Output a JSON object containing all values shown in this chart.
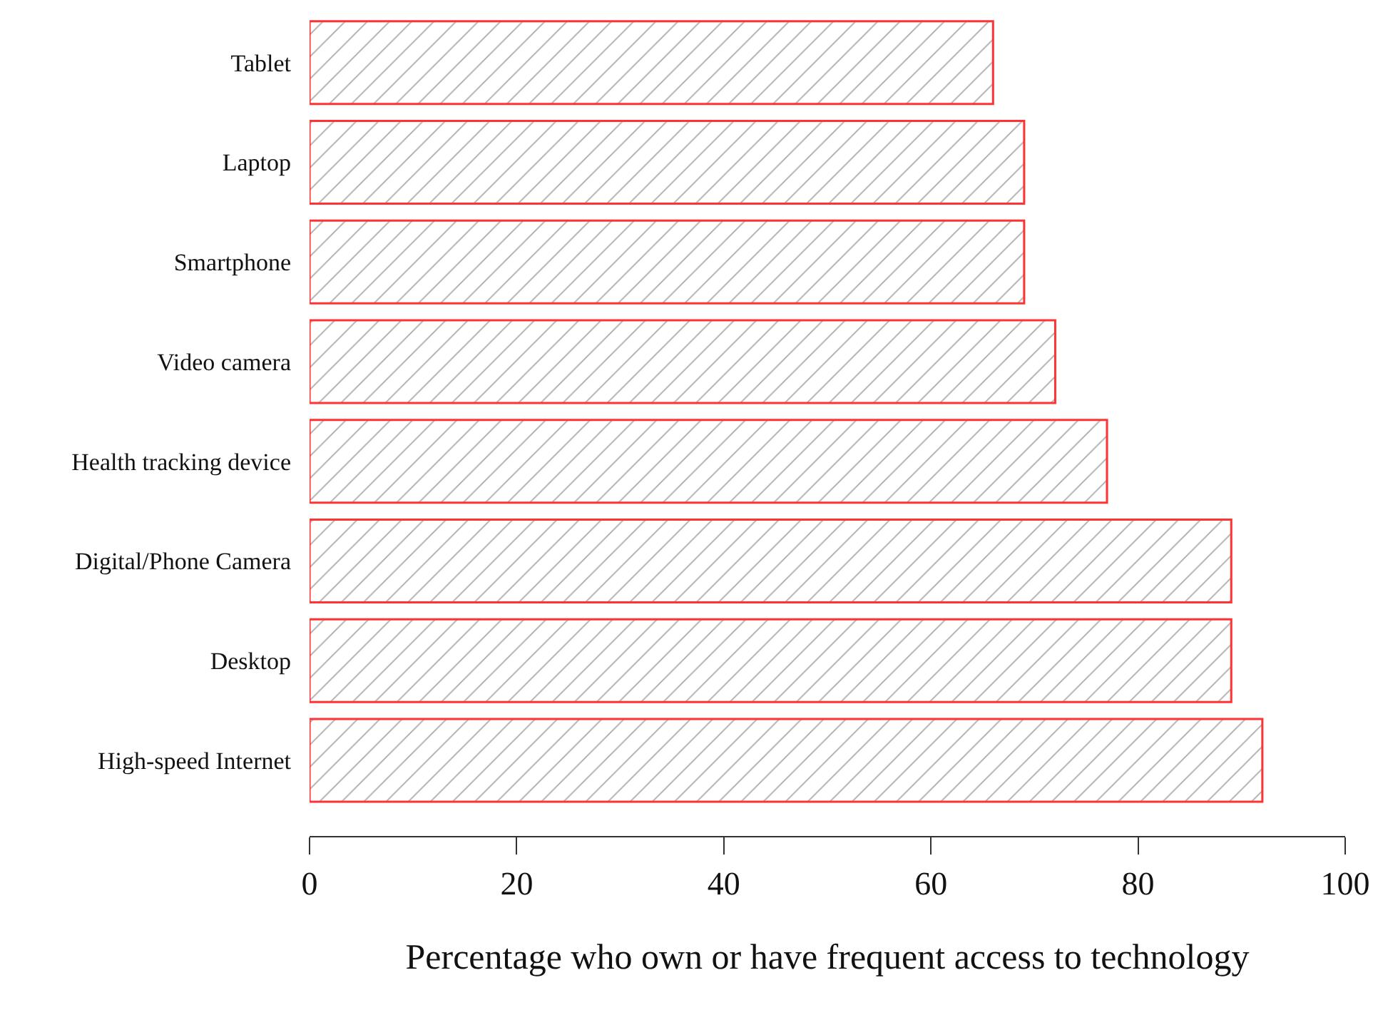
{
  "chart_data": {
    "type": "bar",
    "orientation": "horizontal",
    "xlabel": "Percentage who own or have frequent access to technology",
    "categories": [
      "Tablet",
      "Laptop",
      "Smartphone",
      "Video camera",
      "Health tracking device",
      "Digital/Phone Camera",
      "Desktop",
      "High-speed Internet"
    ],
    "values": [
      66,
      69,
      69,
      72,
      77,
      89,
      89,
      92
    ],
    "color": "#ff3333",
    "xlim": [
      0,
      100
    ],
    "xticks": [
      0,
      20,
      40,
      60,
      80,
      100
    ],
    "grid": false,
    "legend": false
  }
}
